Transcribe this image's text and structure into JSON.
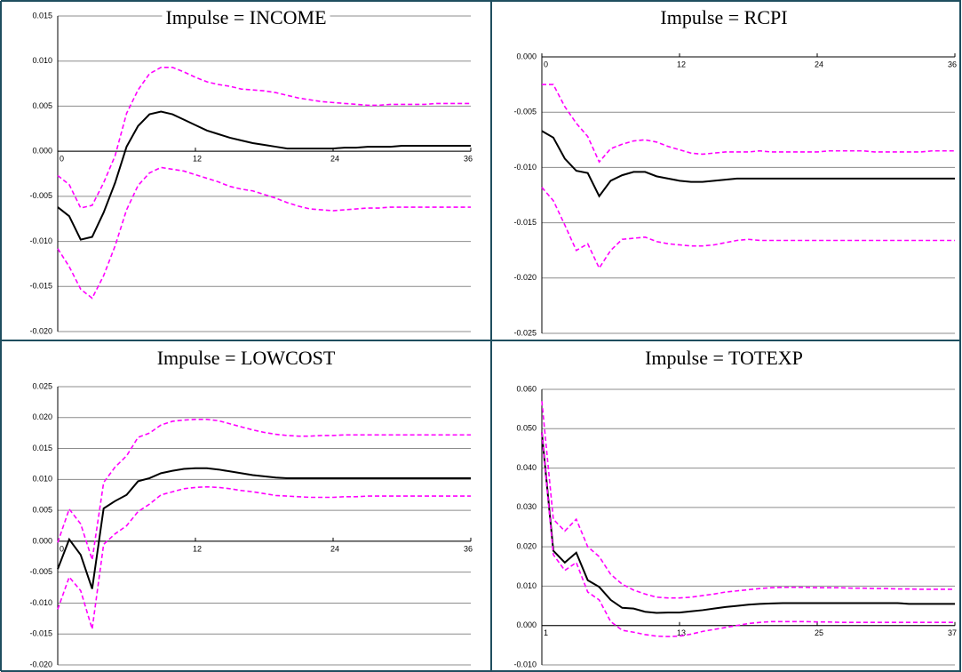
{
  "chart_data": [
    {
      "type": "line",
      "title": "Impulse = INCOME",
      "x": [
        0,
        1,
        2,
        3,
        4,
        5,
        6,
        7,
        8,
        9,
        10,
        11,
        12,
        13,
        14,
        15,
        16,
        17,
        18,
        19,
        20,
        21,
        22,
        23,
        24,
        25,
        26,
        27,
        28,
        29,
        30,
        31,
        32,
        33,
        34,
        35,
        36
      ],
      "xlim": [
        0,
        36
      ],
      "xticks": [
        0,
        12,
        24,
        36
      ],
      "ylim": [
        -0.02,
        0.015
      ],
      "yticks": [
        0.015,
        {
          "value": 0.01,
          "label": "0.010"
        },
        0.005,
        {
          "value": 0,
          "label": "0.000"
        },
        -0.005,
        {
          "value": -0.01,
          "label": "-0.010"
        },
        -0.015,
        {
          "value": -0.02,
          "label": "-0.020"
        }
      ],
      "grid": true,
      "series": [
        {
          "color": "#000000",
          "style": "solid",
          "values": [
            -0.0062,
            -0.0072,
            -0.0098,
            -0.0095,
            -0.0068,
            -0.0035,
            0.0005,
            0.0028,
            0.0041,
            0.0044,
            0.0041,
            0.0035,
            0.0029,
            0.0023,
            0.0019,
            0.0015,
            0.0012,
            0.0009,
            0.0007,
            0.0005,
            0.0003,
            0.0003,
            0.0003,
            0.0003,
            0.0003,
            0.0004,
            0.0004,
            0.0005,
            0.0005,
            0.0005,
            0.0006,
            0.0006,
            0.0006,
            0.0006,
            0.0006,
            0.0006,
            0.0006
          ]
        },
        {
          "color": "#ff00ff",
          "style": "dashed",
          "values": [
            -0.0027,
            -0.0037,
            -0.0063,
            -0.006,
            -0.0035,
            -0.0005,
            0.0042,
            0.0068,
            0.0086,
            0.0093,
            0.0093,
            0.0088,
            0.0082,
            0.0077,
            0.0074,
            0.0072,
            0.0069,
            0.0068,
            0.0067,
            0.0065,
            0.0062,
            0.0059,
            0.0057,
            0.0055,
            0.0054,
            0.0053,
            0.0052,
            0.0051,
            0.0051,
            0.0052,
            0.0052,
            0.0052,
            0.0052,
            0.0053,
            0.0053,
            0.0053,
            0.0053
          ]
        },
        {
          "color": "#ff00ff",
          "style": "dashed",
          "values": [
            -0.0108,
            -0.0128,
            -0.0153,
            -0.0163,
            -0.0138,
            -0.0105,
            -0.0065,
            -0.0038,
            -0.0024,
            -0.0018,
            -0.002,
            -0.0022,
            -0.0026,
            -0.003,
            -0.0034,
            -0.0039,
            -0.0042,
            -0.0044,
            -0.0048,
            -0.0052,
            -0.0057,
            -0.0061,
            -0.0064,
            -0.0065,
            -0.0066,
            -0.0065,
            -0.0064,
            -0.0063,
            -0.0063,
            -0.0062,
            -0.0062,
            -0.0062,
            -0.0062,
            -0.0062,
            -0.0062,
            -0.0062,
            -0.0062
          ]
        }
      ]
    },
    {
      "type": "line",
      "title": "Impulse = RCPI",
      "x": [
        0,
        1,
        2,
        3,
        4,
        5,
        6,
        7,
        8,
        9,
        10,
        11,
        12,
        13,
        14,
        15,
        16,
        17,
        18,
        19,
        20,
        21,
        22,
        23,
        24,
        25,
        26,
        27,
        28,
        29,
        30,
        31,
        32,
        33,
        34,
        35,
        36
      ],
      "xlim": [
        0,
        36
      ],
      "xticks": [
        0,
        12,
        24,
        36
      ],
      "ylim": [
        -0.025,
        0
      ],
      "yticks": [
        {
          "value": 0,
          "label": "0.000"
        },
        -0.005,
        {
          "value": -0.01,
          "label": "-0.010"
        },
        -0.015,
        {
          "value": -0.02,
          "label": "-0.020"
        },
        -0.025
      ],
      "grid": true,
      "series": [
        {
          "color": "#000000",
          "style": "solid",
          "values": [
            -0.0067,
            -0.0073,
            -0.0092,
            -0.0103,
            -0.0105,
            -0.0126,
            -0.0112,
            -0.0107,
            -0.0104,
            -0.0104,
            -0.0108,
            -0.011,
            -0.0112,
            -0.0113,
            -0.0113,
            -0.0112,
            -0.0111,
            -0.011,
            -0.011,
            -0.011,
            -0.011,
            -0.011,
            -0.011,
            -0.011,
            -0.011,
            -0.011,
            -0.011,
            -0.011,
            -0.011,
            -0.011,
            -0.011,
            -0.011,
            -0.011,
            -0.011,
            -0.011,
            -0.011,
            -0.011
          ]
        },
        {
          "color": "#ff00ff",
          "style": "dashed",
          "values": [
            -0.0025,
            -0.0025,
            -0.0045,
            -0.006,
            -0.0072,
            -0.0095,
            -0.0083,
            -0.0079,
            -0.0076,
            -0.0075,
            -0.0077,
            -0.0081,
            -0.0084,
            -0.0087,
            -0.0088,
            -0.0087,
            -0.0086,
            -0.0086,
            -0.0086,
            -0.0085,
            -0.0086,
            -0.0086,
            -0.0086,
            -0.0086,
            -0.0086,
            -0.0085,
            -0.0085,
            -0.0085,
            -0.0085,
            -0.0086,
            -0.0086,
            -0.0086,
            -0.0086,
            -0.0086,
            -0.0085,
            -0.0085,
            -0.0085
          ]
        },
        {
          "color": "#ff00ff",
          "style": "dashed",
          "values": [
            -0.0118,
            -0.013,
            -0.0152,
            -0.0175,
            -0.0169,
            -0.0191,
            -0.0175,
            -0.0165,
            -0.0164,
            -0.0163,
            -0.0167,
            -0.0169,
            -0.017,
            -0.0171,
            -0.0171,
            -0.017,
            -0.0168,
            -0.0166,
            -0.0165,
            -0.0166,
            -0.0166,
            -0.0166,
            -0.0166,
            -0.0166,
            -0.0166,
            -0.0166,
            -0.0166,
            -0.0166,
            -0.0166,
            -0.0166,
            -0.0166,
            -0.0166,
            -0.0166,
            -0.0166,
            -0.0166,
            -0.0166,
            -0.0166
          ]
        }
      ]
    },
    {
      "type": "line",
      "title": "Impulse = LOWCOST",
      "x": [
        0,
        1,
        2,
        3,
        4,
        5,
        6,
        7,
        8,
        9,
        10,
        11,
        12,
        13,
        14,
        15,
        16,
        17,
        18,
        19,
        20,
        21,
        22,
        23,
        24,
        25,
        26,
        27,
        28,
        29,
        30,
        31,
        32,
        33,
        34,
        35,
        36
      ],
      "xlim": [
        0,
        36
      ],
      "xticks": [
        0,
        12,
        24,
        36
      ],
      "ylim": [
        -0.02,
        0.025
      ],
      "yticks": [
        0.025,
        {
          "value": 0.02,
          "label": "0.020"
        },
        0.015,
        {
          "value": 0.01,
          "label": "0.010"
        },
        0.005,
        {
          "value": 0,
          "label": "0.000"
        },
        -0.005,
        {
          "value": -0.01,
          "label": "-0.010"
        },
        -0.015,
        {
          "value": -0.02,
          "label": "-0.020"
        }
      ],
      "grid": true,
      "series": [
        {
          "color": "#000000",
          "style": "solid",
          "values": [
            -0.0045,
            0.0003,
            -0.0022,
            -0.0077,
            0.0053,
            0.0065,
            0.0075,
            0.0097,
            0.0102,
            0.011,
            0.0114,
            0.0117,
            0.0118,
            0.0118,
            0.0116,
            0.0113,
            0.011,
            0.0107,
            0.0105,
            0.0103,
            0.0102,
            0.0102,
            0.0102,
            0.0102,
            0.0102,
            0.0102,
            0.0102,
            0.0102,
            0.0102,
            0.0102,
            0.0102,
            0.0102,
            0.0102,
            0.0102,
            0.0102,
            0.0102,
            0.0102
          ]
        },
        {
          "color": "#ff00ff",
          "style": "dashed",
          "values": [
            -0.0002,
            0.0052,
            0.0028,
            -0.003,
            0.0095,
            0.012,
            0.0138,
            0.0168,
            0.0175,
            0.0188,
            0.0194,
            0.0196,
            0.0197,
            0.0197,
            0.0195,
            0.019,
            0.0185,
            0.018,
            0.0176,
            0.0173,
            0.0171,
            0.017,
            0.017,
            0.0171,
            0.0171,
            0.0172,
            0.0172,
            0.0172,
            0.0172,
            0.0172,
            0.0172,
            0.0172,
            0.0172,
            0.0172,
            0.0172,
            0.0172,
            0.0172
          ]
        },
        {
          "color": "#ff00ff",
          "style": "dashed",
          "values": [
            -0.011,
            -0.0058,
            -0.008,
            -0.0142,
            -0.0005,
            0.0012,
            0.0025,
            0.0048,
            0.006,
            0.0075,
            0.008,
            0.0085,
            0.0087,
            0.0088,
            0.0087,
            0.0085,
            0.0082,
            0.008,
            0.0077,
            0.0074,
            0.0073,
            0.0072,
            0.0071,
            0.0071,
            0.0071,
            0.0072,
            0.0072,
            0.0073,
            0.0073,
            0.0073,
            0.0073,
            0.0073,
            0.0073,
            0.0073,
            0.0073,
            0.0073,
            0.0073
          ]
        }
      ]
    },
    {
      "type": "line",
      "title": "Impulse = TOTEXP",
      "x": [
        1,
        2,
        3,
        4,
        5,
        6,
        7,
        8,
        9,
        10,
        11,
        12,
        13,
        14,
        15,
        16,
        17,
        18,
        19,
        20,
        21,
        22,
        23,
        24,
        25,
        26,
        27,
        28,
        29,
        30,
        31,
        32,
        33,
        34,
        35,
        36,
        37
      ],
      "xlim": [
        1,
        37
      ],
      "xticks": [
        1,
        13,
        25,
        37
      ],
      "ylim": [
        -0.01,
        0.06
      ],
      "yticks": [
        {
          "value": 0.06,
          "label": "0.060"
        },
        {
          "value": 0.05,
          "label": "0.050"
        },
        {
          "value": 0.04,
          "label": "0.040"
        },
        {
          "value": 0.03,
          "label": "0.030"
        },
        {
          "value": 0.02,
          "label": "0.020"
        },
        {
          "value": 0.01,
          "label": "0.010"
        },
        {
          "value": 0,
          "label": "0.000"
        },
        {
          "value": -0.01,
          "label": "-0.010"
        }
      ],
      "grid": true,
      "series": [
        {
          "color": "#000000",
          "style": "solid",
          "values": [
            0.049,
            0.019,
            0.016,
            0.0185,
            0.0115,
            0.0098,
            0.0065,
            0.0045,
            0.0043,
            0.0035,
            0.0032,
            0.0033,
            0.0033,
            0.0036,
            0.0039,
            0.0043,
            0.0047,
            0.005,
            0.0053,
            0.0055,
            0.0056,
            0.0057,
            0.0057,
            0.0057,
            0.0057,
            0.0057,
            0.0057,
            0.0057,
            0.0057,
            0.0057,
            0.0057,
            0.0057,
            0.0055,
            0.0055,
            0.0055,
            0.0055,
            0.0055
          ]
        },
        {
          "color": "#ff00ff",
          "style": "dashed",
          "values": [
            0.057,
            0.027,
            0.024,
            0.027,
            0.02,
            0.0175,
            0.013,
            0.0105,
            0.009,
            0.008,
            0.0072,
            0.007,
            0.007,
            0.0072,
            0.0076,
            0.008,
            0.0085,
            0.0088,
            0.0091,
            0.0094,
            0.0096,
            0.0097,
            0.0097,
            0.0097,
            0.0096,
            0.0096,
            0.0096,
            0.0095,
            0.0095,
            0.0094,
            0.0094,
            0.0093,
            0.0093,
            0.0092,
            0.0092,
            0.0092,
            0.0092
          ]
        },
        {
          "color": "#ff00ff",
          "style": "dashed",
          "values": [
            0.049,
            0.018,
            0.014,
            0.016,
            0.0085,
            0.0065,
            0.001,
            -0.0012,
            -0.0017,
            -0.0023,
            -0.0027,
            -0.0028,
            -0.0027,
            -0.0022,
            -0.0015,
            -0.001,
            -0.0005,
            0,
            0.0005,
            0.0008,
            0.001,
            0.001,
            0.001,
            0.001,
            0.0009,
            0.0009,
            0.0008,
            0.0008,
            0.0008,
            0.0008,
            0.0008,
            0.0008,
            0.0008,
            0.0008,
            0.0008,
            0.0008,
            0.0008
          ]
        }
      ]
    }
  ]
}
